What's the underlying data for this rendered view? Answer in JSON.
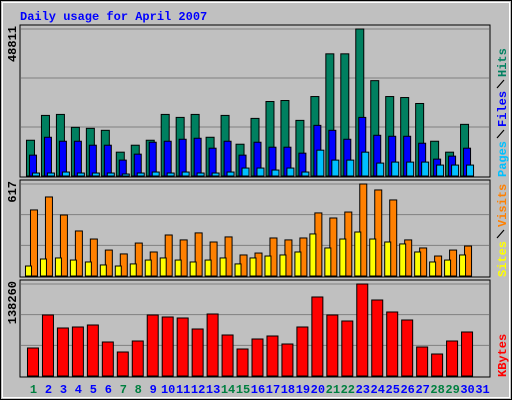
{
  "title": "Daily usage for April 2007",
  "chart_data": [
    {
      "type": "bar",
      "ylim": [
        0,
        48811
      ],
      "yticks": [
        48811
      ],
      "series": [
        {
          "name": "Pages",
          "color": "#00c0ff",
          "values": [
            989,
            989,
            1319,
            989,
            989,
            989,
            660,
            989,
            1319,
            989,
            1319,
            989,
            989,
            1319,
            2638,
            2638,
            1979,
            2638,
            1319,
            8575,
            5277,
            5277,
            7915,
            4287,
            4617,
            4617,
            4617,
            3628,
            3628,
            3628,
            null
          ]
        },
        {
          "name": "Files",
          "color": "#0000ff",
          "values": [
            6926,
            12862,
            11543,
            11543,
            10224,
            10224,
            5277,
            7256,
            11213,
            11543,
            12203,
            12532,
            9234,
            11543,
            6926,
            11213,
            9564,
            9564,
            7585,
            16820,
            15170,
            12203,
            19458,
            13522,
            13192,
            13192,
            10883,
            5607,
            6596,
            9234,
            null
          ]
        },
        {
          "name": "Hits",
          "color": "#008060",
          "values": [
            11873,
            20118,
            20448,
            16160,
            15830,
            15170,
            7915,
            10224,
            11873,
            20448,
            19458,
            20448,
            12862,
            20118,
            10554,
            19128,
            24735,
            25065,
            18469,
            26384,
            40566,
            40566,
            48811,
            31661,
            26384,
            26054,
            24075,
            11543,
            7915,
            17150,
            null
          ]
        }
      ]
    },
    {
      "type": "bar",
      "ylim": [
        0,
        617
      ],
      "yticks": [
        617
      ],
      "series": [
        {
          "name": "Sites",
          "color": "#ffff00",
          "values": [
            67,
            114,
            121,
            107,
            94,
            74,
            67,
            81,
            107,
            121,
            107,
            94,
            107,
            121,
            81,
            121,
            134,
            141,
            161,
            282,
            188,
            248,
            295,
            248,
            228,
            215,
            161,
            94,
            107,
            141,
            null
          ]
        },
        {
          "name": "Visits",
          "color": "#ff8000",
          "values": [
            443,
            530,
            409,
            302,
            248,
            174,
            148,
            221,
            161,
            275,
            242,
            289,
            228,
            262,
            141,
            154,
            255,
            242,
            255,
            423,
            389,
            429,
            617,
            577,
            510,
            242,
            188,
            134,
            174,
            201,
            null
          ]
        }
      ]
    },
    {
      "type": "bar",
      "ylim": [
        0,
        138260
      ],
      "yticks": [
        138260
      ],
      "categories": [
        "1",
        "2",
        "3",
        "4",
        "5",
        "6",
        "7",
        "8",
        "9",
        "10",
        "11",
        "12",
        "13",
        "14",
        "15",
        "16",
        "17",
        "18",
        "19",
        "20",
        "21",
        "22",
        "23",
        "24",
        "25",
        "26",
        "27",
        "28",
        "29",
        "30",
        "31"
      ],
      "category_colors": [
        "#008040",
        "#0000ff",
        "#0000ff",
        "#0000ff",
        "#0000ff",
        "#0000ff",
        "#008040",
        "#008040",
        "#0000ff",
        "#0000ff",
        "#0000ff",
        "#0000ff",
        "#0000ff",
        "#008040",
        "#008040",
        "#0000ff",
        "#0000ff",
        "#0000ff",
        "#0000ff",
        "#0000ff",
        "#008040",
        "#008040",
        "#0000ff",
        "#0000ff",
        "#0000ff",
        "#0000ff",
        "#0000ff",
        "#008040",
        "#008040",
        "#0000ff",
        "#0000ff"
      ],
      "series": [
        {
          "name": "KBytes",
          "color": "#ff0000",
          "values": [
            42079,
            91688,
            72144,
            73647,
            76653,
            51102,
            36072,
            52604,
            91688,
            88682,
            87179,
            70641,
            93191,
            61625,
            40582,
            55613,
            60122,
            48098,
            73647,
            118741,
            91688,
            82669,
            138260,
            114232,
            96196,
            84171,
            43588,
            33067,
            52604,
            66134,
            null
          ]
        }
      ]
    }
  ]
}
